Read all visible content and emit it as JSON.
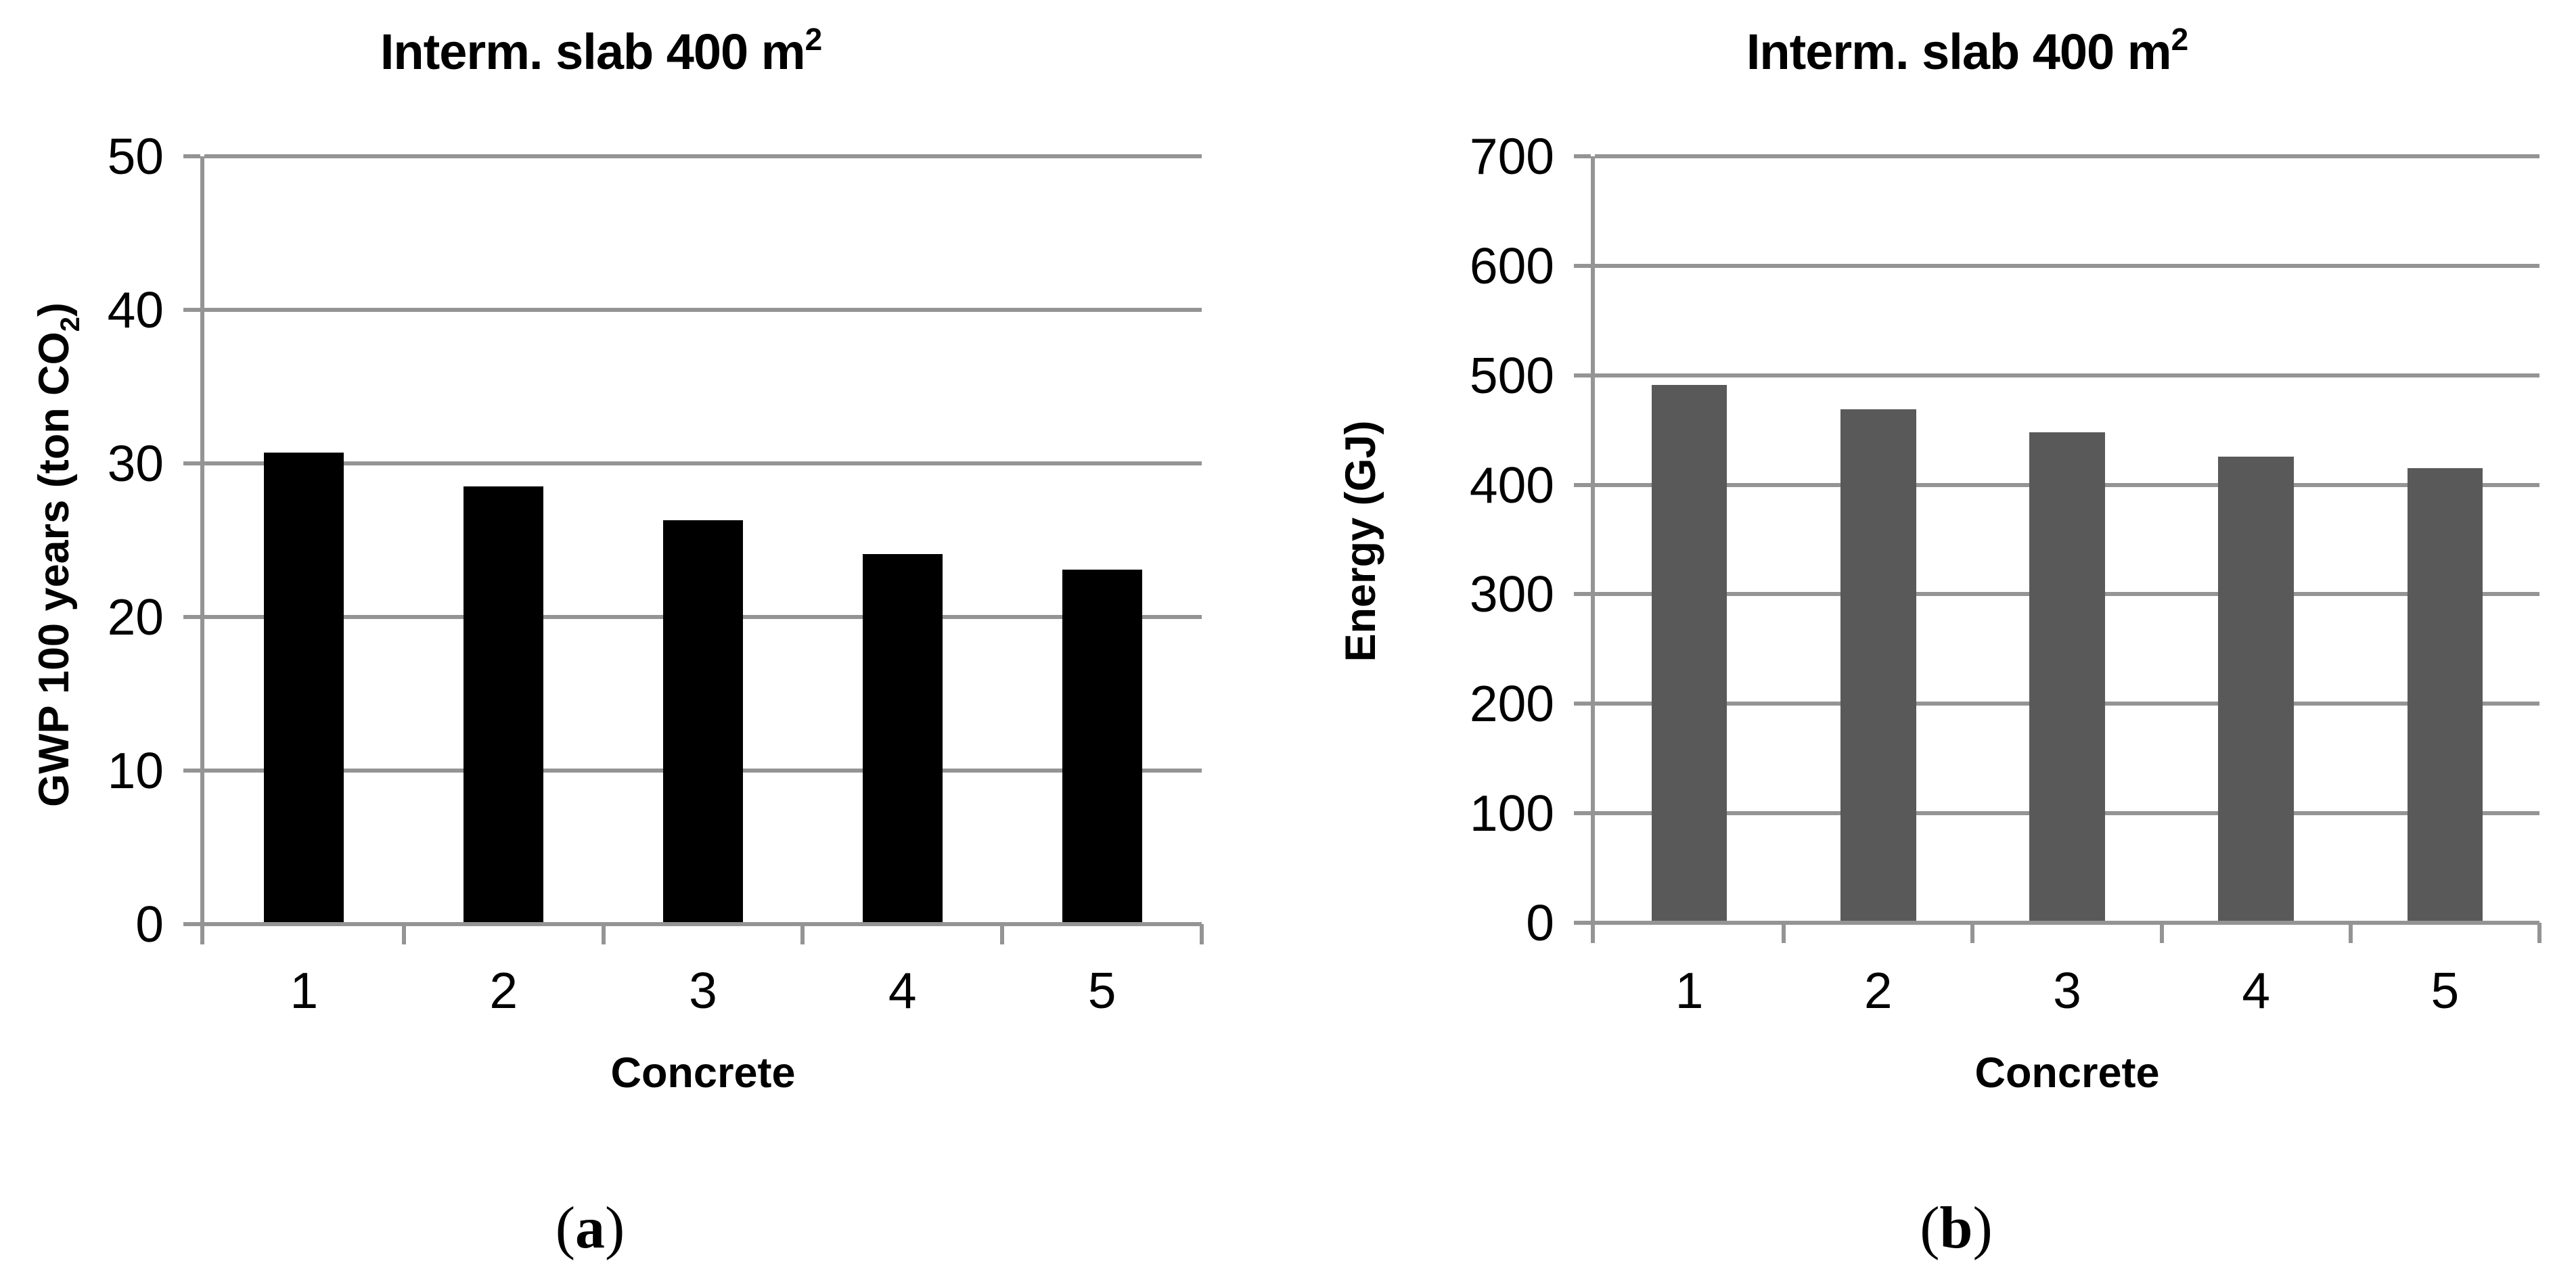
{
  "figure": {
    "background_color": "#ffffff",
    "grid_color": "#949494",
    "text_color": "#000000"
  },
  "chart_data": [
    {
      "type": "bar",
      "panel": "a",
      "title": "Interm. slab 400 m",
      "title_sup": "2",
      "categories": [
        "1",
        "2",
        "3",
        "4",
        "5"
      ],
      "values": [
        30.7,
        28.5,
        26.3,
        24.1,
        23.1
      ],
      "xlabel": "Concrete",
      "ylabel_main": "GWP 100 years (ton CO",
      "ylabel_sub": "2",
      "ylabel_end": ")",
      "ylim": [
        0,
        50
      ],
      "yticks": [
        0,
        10,
        20,
        30,
        40,
        50
      ],
      "grid": true,
      "legend": "none",
      "bar_color": "#000000",
      "sub_label_open": "(",
      "sub_label_letter": "a",
      "sub_label_close": ")"
    },
    {
      "type": "bar",
      "panel": "b",
      "title": "Interm. slab 400 m",
      "title_sup": "2",
      "categories": [
        "1",
        "2",
        "3",
        "4",
        "5"
      ],
      "values": [
        491,
        469,
        448,
        426,
        415
      ],
      "xlabel": "Concrete",
      "ylabel_main": "Energy (GJ)",
      "ylabel_sub": "",
      "ylabel_end": "",
      "ylim": [
        0,
        700
      ],
      "yticks": [
        0,
        100,
        200,
        300,
        400,
        500,
        600,
        700
      ],
      "grid": true,
      "legend": "none",
      "bar_color": "#595959",
      "sub_label_open": "(",
      "sub_label_letter": "b",
      "sub_label_close": ")"
    }
  ]
}
